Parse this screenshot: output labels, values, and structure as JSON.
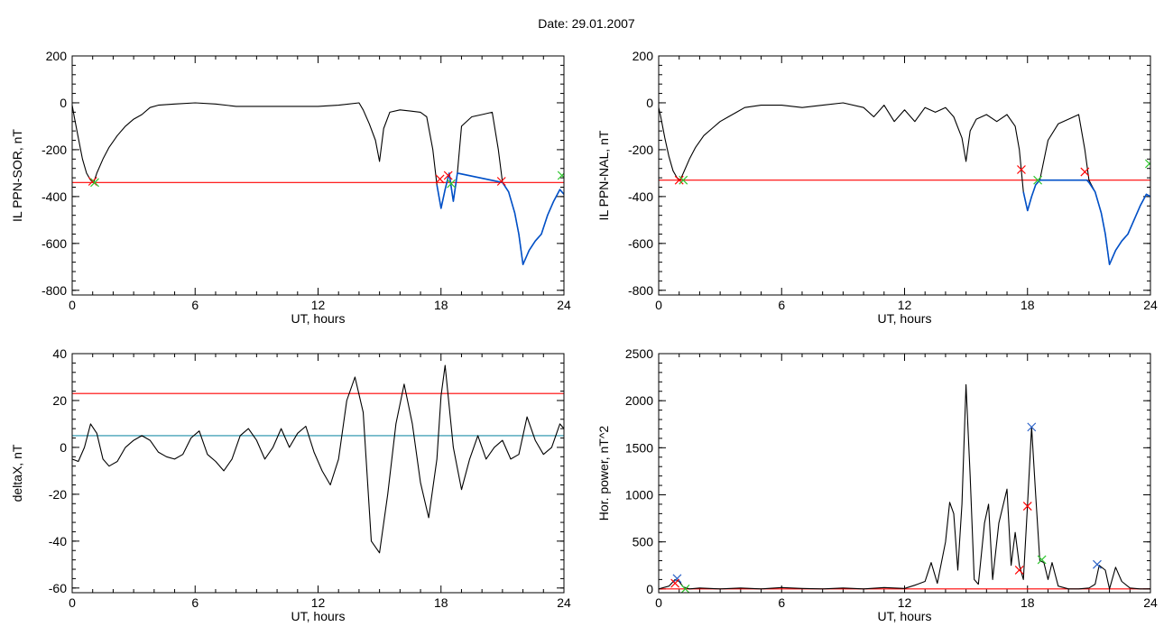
{
  "page": {
    "title": "Date:  29.01.2007"
  },
  "colors": {
    "data_line": "#000000",
    "threshold": "#ff0000",
    "highlight": "#0050c8",
    "baseline_teal": "#1f8fa8",
    "marker_red": "#ff0000",
    "marker_green": "#2ec52e",
    "marker_blue": "#2b62c8"
  },
  "chart_data": [
    {
      "id": "il-ppn-sor",
      "type": "line",
      "title": "",
      "xlabel": "UT, hours",
      "ylabel": "IL PPN-SOR, nT",
      "xlim": [
        0,
        24
      ],
      "ylim": [
        -820,
        200
      ],
      "xticks": [
        0,
        6,
        12,
        18,
        24
      ],
      "yticks": [
        200,
        0,
        -200,
        -400,
        -600,
        -800
      ],
      "threshold": -340,
      "series": [
        {
          "role": "main",
          "color": "#000000",
          "x": [
            0,
            0.1,
            0.3,
            0.5,
            0.7,
            0.9,
            1.05,
            1.2,
            1.5,
            1.8,
            2.2,
            2.6,
            3.0,
            3.4,
            3.8,
            4.2,
            5,
            6,
            7,
            8,
            9,
            10,
            11,
            12,
            13,
            14,
            14.2,
            14.5,
            14.8,
            15.0,
            15.2,
            15.5,
            16,
            16.5,
            17,
            17.3,
            17.6,
            17.8,
            18.0,
            18.2,
            18.4,
            18.6,
            18.8,
            19.0,
            19.5,
            20.0,
            20.5,
            20.8,
            21.0,
            21.3,
            21.6,
            21.8,
            22.0,
            22.3,
            22.6,
            22.9,
            23.2,
            23.5,
            23.8,
            24
          ],
          "y": [
            -10,
            -60,
            -150,
            -240,
            -300,
            -330,
            -340,
            -300,
            -240,
            -190,
            -140,
            -100,
            -70,
            -50,
            -20,
            -10,
            -5,
            0,
            -5,
            -15,
            -15,
            -15,
            -15,
            -15,
            -10,
            0,
            -30,
            -90,
            -160,
            -250,
            -110,
            -40,
            -30,
            -35,
            -40,
            -60,
            -200,
            -350,
            -450,
            -370,
            -300,
            -420,
            -300,
            -100,
            -60,
            -50,
            -40,
            -200,
            -340,
            -380,
            -470,
            -560,
            -690,
            -630,
            -590,
            -560,
            -480,
            -420,
            -370,
            -390
          ]
        },
        {
          "role": "highlight",
          "color": "#0050c8",
          "x": [
            17.8,
            18.0,
            18.2,
            18.4,
            18.6,
            18.8,
            21.0,
            21.3,
            21.6,
            21.8,
            22.0,
            22.3,
            22.6,
            22.9,
            23.2,
            23.5,
            23.8,
            24
          ],
          "y": [
            -350,
            -450,
            -370,
            -300,
            -420,
            -300,
            -340,
            -380,
            -470,
            -560,
            -690,
            -630,
            -590,
            -560,
            -480,
            -420,
            -370,
            -390
          ]
        }
      ],
      "markers": [
        {
          "shape": "x",
          "color": "#ff0000",
          "x": 1.0,
          "y": -335
        },
        {
          "shape": "x",
          "color": "#2ec52e",
          "x": 1.1,
          "y": -340
        },
        {
          "shape": "x",
          "color": "#ff0000",
          "x": 17.95,
          "y": -325
        },
        {
          "shape": "x",
          "color": "#ff0000",
          "x": 18.35,
          "y": -310
        },
        {
          "shape": "x",
          "color": "#2ec52e",
          "x": 18.5,
          "y": -345
        },
        {
          "shape": "x",
          "color": "#ff0000",
          "x": 20.95,
          "y": -335
        },
        {
          "shape": "x",
          "color": "#2ec52e",
          "x": 23.9,
          "y": -310
        }
      ]
    },
    {
      "id": "il-ppn-nal",
      "type": "line",
      "title": "",
      "xlabel": "UT, hours",
      "ylabel": "IL PPN-NAL, nT",
      "xlim": [
        0,
        24
      ],
      "ylim": [
        -820,
        200
      ],
      "xticks": [
        0,
        6,
        12,
        18,
        24
      ],
      "yticks": [
        200,
        0,
        -200,
        -400,
        -600,
        -800
      ],
      "threshold": -330,
      "series": [
        {
          "role": "main",
          "color": "#000000",
          "x": [
            0,
            0.1,
            0.3,
            0.5,
            0.7,
            0.9,
            1.05,
            1.2,
            1.5,
            1.8,
            2.2,
            2.6,
            3.0,
            3.4,
            3.8,
            4.2,
            5,
            6,
            7,
            8,
            9,
            10,
            10.5,
            11,
            11.5,
            12,
            12.5,
            13,
            13.5,
            14,
            14.4,
            14.8,
            15.0,
            15.2,
            15.5,
            16,
            16.5,
            17,
            17.4,
            17.6,
            17.8,
            18.0,
            18.2,
            18.4,
            18.6,
            19.0,
            19.5,
            20.0,
            20.5,
            20.8,
            21.0,
            21.3,
            21.6,
            21.8,
            22.0,
            22.3,
            22.6,
            22.9,
            23.2,
            23.5,
            23.8,
            24
          ],
          "y": [
            -20,
            -60,
            -150,
            -230,
            -290,
            -320,
            -330,
            -300,
            -240,
            -190,
            -140,
            -110,
            -80,
            -60,
            -40,
            -20,
            -10,
            -10,
            -20,
            -10,
            0,
            -20,
            -60,
            -10,
            -80,
            -30,
            -80,
            -20,
            -40,
            -20,
            -60,
            -150,
            -250,
            -120,
            -70,
            -50,
            -80,
            -50,
            -100,
            -200,
            -380,
            -460,
            -400,
            -350,
            -330,
            -160,
            -90,
            -70,
            -50,
            -200,
            -330,
            -380,
            -470,
            -560,
            -690,
            -630,
            -590,
            -560,
            -500,
            -440,
            -390,
            -400
          ]
        },
        {
          "role": "highlight",
          "color": "#0050c8",
          "x": [
            17.8,
            18.0,
            18.2,
            18.4,
            18.6,
            20.9,
            21.0,
            21.3,
            21.6,
            21.8,
            22.0,
            22.3,
            22.6,
            22.9,
            23.2,
            23.5,
            23.8,
            24
          ],
          "y": [
            -380,
            -460,
            -400,
            -350,
            -330,
            -330,
            -340,
            -380,
            -470,
            -560,
            -690,
            -630,
            -590,
            -560,
            -500,
            -440,
            -390,
            -400
          ]
        }
      ],
      "markers": [
        {
          "shape": "x",
          "color": "#ff0000",
          "x": 1.0,
          "y": -330
        },
        {
          "shape": "x",
          "color": "#2ec52e",
          "x": 1.2,
          "y": -330
        },
        {
          "shape": "x",
          "color": "#ff0000",
          "x": 17.7,
          "y": -285
        },
        {
          "shape": "x",
          "color": "#2ec52e",
          "x": 18.5,
          "y": -330
        },
        {
          "shape": "x",
          "color": "#ff0000",
          "x": 20.8,
          "y": -295
        },
        {
          "shape": "x",
          "color": "#2ec52e",
          "x": 23.95,
          "y": -260
        }
      ]
    },
    {
      "id": "deltax",
      "type": "line",
      "title": "",
      "xlabel": "UT, hours",
      "ylabel": "deltaX, nT",
      "xlim": [
        0,
        24
      ],
      "ylim": [
        -62,
        40
      ],
      "xticks": [
        0,
        6,
        12,
        18,
        24
      ],
      "yticks": [
        40,
        20,
        0,
        -20,
        -40,
        -60
      ],
      "threshold": 23,
      "baseline": 5,
      "series": [
        {
          "role": "main",
          "color": "#000000",
          "x": [
            0,
            0.3,
            0.6,
            0.9,
            1.2,
            1.5,
            1.8,
            2.2,
            2.6,
            3.0,
            3.4,
            3.8,
            4.2,
            4.6,
            5.0,
            5.4,
            5.8,
            6.2,
            6.6,
            7.0,
            7.4,
            7.8,
            8.2,
            8.6,
            9.0,
            9.4,
            9.8,
            10.2,
            10.6,
            11.0,
            11.4,
            11.8,
            12.2,
            12.6,
            13.0,
            13.4,
            13.8,
            14.2,
            14.6,
            15.0,
            15.4,
            15.8,
            16.2,
            16.6,
            17.0,
            17.4,
            17.8,
            18.0,
            18.2,
            18.6,
            19.0,
            19.4,
            19.8,
            20.2,
            20.6,
            21.0,
            21.4,
            21.8,
            22.2,
            22.6,
            23.0,
            23.4,
            23.8,
            24
          ],
          "y": [
            -5,
            -6,
            0,
            10,
            6,
            -5,
            -8,
            -6,
            0,
            3,
            5,
            3,
            -2,
            -4,
            -5,
            -3,
            4,
            7,
            -3,
            -6,
            -10,
            -5,
            5,
            8,
            3,
            -5,
            0,
            8,
            0,
            6,
            9,
            -2,
            -10,
            -16,
            -5,
            20,
            30,
            15,
            -40,
            -45,
            -20,
            10,
            27,
            10,
            -15,
            -30,
            -5,
            22,
            35,
            0,
            -18,
            -5,
            5,
            -5,
            0,
            3,
            -5,
            -3,
            13,
            3,
            -3,
            0,
            10,
            8
          ]
        }
      ],
      "markers": []
    },
    {
      "id": "hor-power",
      "type": "line",
      "title": "",
      "xlabel": "UT, hours",
      "ylabel": "Hor. power, nT^2",
      "xlim": [
        0,
        24
      ],
      "ylim": [
        -40,
        2500
      ],
      "xticks": [
        0,
        6,
        12,
        18,
        24
      ],
      "yticks": [
        2500,
        2000,
        1500,
        1000,
        500,
        0
      ],
      "threshold": 0,
      "series": [
        {
          "role": "main",
          "color": "#000000",
          "x": [
            0,
            0.5,
            0.8,
            1.0,
            1.2,
            1.5,
            2,
            3,
            4,
            5,
            6,
            7,
            8,
            9,
            10,
            11,
            12,
            12.5,
            13,
            13.3,
            13.6,
            14,
            14.2,
            14.4,
            14.6,
            14.8,
            15.0,
            15.2,
            15.4,
            15.6,
            15.9,
            16.1,
            16.3,
            16.6,
            17.0,
            17.2,
            17.4,
            17.6,
            17.8,
            18.0,
            18.2,
            18.4,
            18.6,
            18.8,
            19.0,
            19.2,
            19.5,
            20,
            20.5,
            21,
            21.3,
            21.5,
            21.8,
            22.0,
            22.3,
            22.6,
            23,
            23.5,
            24
          ],
          "y": [
            0,
            30,
            100,
            80,
            20,
            0,
            10,
            0,
            10,
            0,
            15,
            5,
            0,
            10,
            0,
            15,
            5,
            40,
            80,
            280,
            60,
            500,
            920,
            800,
            200,
            900,
            2170,
            1200,
            100,
            50,
            700,
            900,
            100,
            700,
            1060,
            250,
            600,
            250,
            100,
            900,
            1720,
            1000,
            300,
            280,
            100,
            280,
            30,
            0,
            0,
            10,
            50,
            250,
            200,
            0,
            230,
            80,
            10,
            0,
            0
          ]
        }
      ],
      "markers": [
        {
          "shape": "x",
          "color": "#2b62c8",
          "x": 0.9,
          "y": 110
        },
        {
          "shape": "x",
          "color": "#ff0000",
          "x": 0.8,
          "y": 60
        },
        {
          "shape": "x",
          "color": "#2ec52e",
          "x": 1.3,
          "y": 0
        },
        {
          "shape": "x",
          "color": "#ff0000",
          "x": 17.6,
          "y": 200
        },
        {
          "shape": "x",
          "color": "#ff0000",
          "x": 18.0,
          "y": 880
        },
        {
          "shape": "x",
          "color": "#2b62c8",
          "x": 18.2,
          "y": 1720
        },
        {
          "shape": "x",
          "color": "#2ec52e",
          "x": 18.7,
          "y": 310
        },
        {
          "shape": "x",
          "color": "#2b62c8",
          "x": 21.4,
          "y": 260
        }
      ]
    }
  ]
}
